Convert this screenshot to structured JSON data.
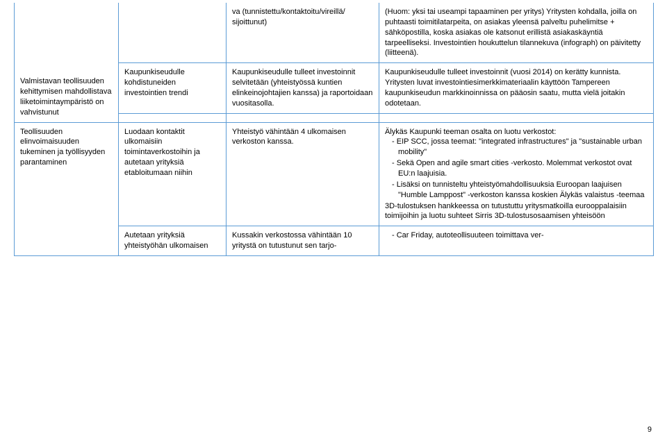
{
  "border_color": "#5b9bd5",
  "font_size_pt": 11,
  "page_number": "9",
  "rows": [
    {
      "c1": "",
      "c2": "",
      "c3": "va (tunnistettu/kontaktoitu/vireillä/ sijoittunut)",
      "c4": "(Huom: yksi tai useampi tapaaminen per yritys) Yritysten kohdalla, joilla on puhtaasti toimitilatarpeita, on asiakas yleensä palveltu puhelimitse + sähköpostilla, koska asiakas ole katsonut erillistä asiakaskäyntiä tarpeelliseksi. Investointien houkuttelun tilannekuva (infograph) on päivitetty (liitteenä)."
    },
    {
      "c1": "",
      "c2": "Kaupunkiseudulle kohdistuneiden investointien trendi",
      "c3": "Kaupunkiseudulle tulleet investoinnit selvitetään (yhteistyössä kuntien elinkeinojohtajien kanssa) ja raportoidaan vuositasolla.",
      "c4": "Kaupunkiseudulle tulleet investoinnit (vuosi 2014) on kerätty kunnista. Yritysten luvat investointiesimerkkimateriaalin käyttöön Tampereen kaupunkiseudun markkinoinnissa on pääosin saatu, mutta vielä joitakin odotetaan."
    },
    {
      "c1": "Valmistavan teollisuuden kehittymisen mahdollistava liiketoimintaympäristö on vahvistunut",
      "c2": "",
      "c3": "",
      "c4": ""
    },
    {
      "c1": "Teollisuuden elinvoimaisuuden tukeminen ja työllisyyden parantaminen",
      "c2": "Luodaan kontaktit ulkomaisiin toimintaverkostoihin ja autetaan yrityksiä etabloitumaan niihin",
      "c3": "Yhteistyö vähintään 4 ulkomaisen verkoston kanssa.",
      "c4_intro": "Älykäs Kaupunki teeman osalta on luotu verkostot:",
      "c4_items": [
        "EIP SCC, jossa teemat: \"integrated infrastructures\" ja \"sustainable urban mobility\"",
        "Sekä Open and agile smart cities -verkosto. Molemmat verkostot ovat EU:n laajuisia.",
        "Lisäksi on tunnisteltu yhteistyömahdollisuuksia Euroopan laajuisen \"Humble Lamppost\" -verkoston kanssa koskien Älykäs valaistus -teemaa"
      ],
      "c4_after": "3D-tulostuksen hankkeessa on tutustuttu yritysmatkоilla eurooppalaisiin toimijoihin ja luotu suhteet Sirris 3D-tulostusosaamisen yhteisöön"
    },
    {
      "c1": "",
      "c2": "Autetaan yrityksiä yhteistyöhän ulkomaisen",
      "c3": "Kussakin verkostossa vähintään 10 yritystä on tutustunut sen tarjo-",
      "c4_items": [
        "Car Friday, autoteollisuuteen toimittava ver-"
      ]
    }
  ]
}
